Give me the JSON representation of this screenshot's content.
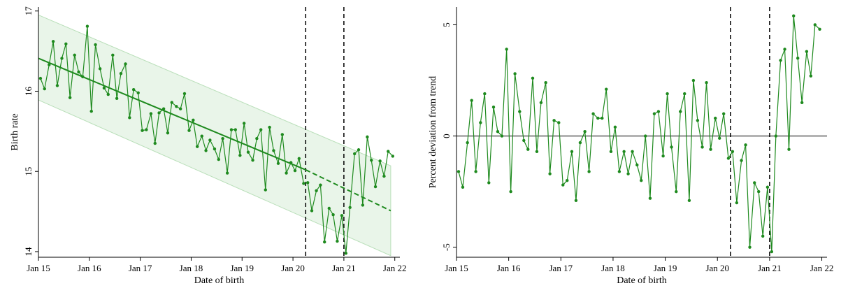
{
  "colors": {
    "series": "#1e8a1e",
    "band_fill": "#e9f5e9",
    "band_stroke": "#b9dfb9",
    "axis": "#000000",
    "event_line": "#000000"
  },
  "chart_data": [
    {
      "type": "line",
      "title": "",
      "xlabel": "Date of birth",
      "ylabel": "Birth rate",
      "xlim": [
        2015.0,
        2022.1
      ],
      "ylim": [
        13.93,
        17.05
      ],
      "x_ticks": [
        {
          "value": 2015,
          "label": "Jan 15"
        },
        {
          "value": 2016,
          "label": "Jan 16"
        },
        {
          "value": 2017,
          "label": "Jan 17"
        },
        {
          "value": 2018,
          "label": "Jan 18"
        },
        {
          "value": 2019,
          "label": "Jan 19"
        },
        {
          "value": 2020,
          "label": "Jan 20"
        },
        {
          "value": 2021,
          "label": "Jan 21"
        },
        {
          "value": 2022,
          "label": "Jan 22"
        }
      ],
      "y_ticks": [
        {
          "value": 14,
          "label": "14"
        },
        {
          "value": 15,
          "label": "15"
        },
        {
          "value": 16,
          "label": "16"
        },
        {
          "value": 17,
          "label": "17"
        }
      ],
      "grid": false,
      "legend": "none",
      "vertical_dashed_lines": [
        2020.25,
        2021.0
      ],
      "trend": {
        "solid": {
          "x": [
            2015.0,
            2020.25
          ],
          "y": [
            16.41,
            15.02
          ]
        },
        "dashed": {
          "x": [
            2020.25,
            2021.92
          ],
          "y": [
            15.02,
            14.51
          ]
        }
      },
      "band": {
        "x": [
          2015.0,
          2021.92
        ],
        "upper": [
          16.95,
          15.07
        ],
        "lower": [
          15.89,
          13.95
        ]
      },
      "series": [
        {
          "x": [
            2015.04,
            2015.12,
            2015.21,
            2015.29,
            2015.37,
            2015.46,
            2015.54,
            2015.62,
            2015.71,
            2015.79,
            2015.87,
            2015.96,
            2016.04,
            2016.12,
            2016.21,
            2016.29,
            2016.37,
            2016.46,
            2016.54,
            2016.62,
            2016.71,
            2016.79,
            2016.87,
            2016.96,
            2017.04,
            2017.12,
            2017.21,
            2017.29,
            2017.37,
            2017.46,
            2017.54,
            2017.62,
            2017.71,
            2017.79,
            2017.87,
            2017.96,
            2018.04,
            2018.12,
            2018.21,
            2018.29,
            2018.37,
            2018.46,
            2018.54,
            2018.62,
            2018.71,
            2018.79,
            2018.87,
            2018.96,
            2019.04,
            2019.12,
            2019.21,
            2019.29,
            2019.37,
            2019.46,
            2019.54,
            2019.62,
            2019.71,
            2019.79,
            2019.87,
            2019.96,
            2020.04,
            2020.12,
            2020.21,
            2020.29,
            2020.37,
            2020.46,
            2020.54,
            2020.62,
            2020.71,
            2020.79,
            2020.87,
            2020.96,
            2021.04,
            2021.12,
            2021.21,
            2021.29,
            2021.37,
            2021.46,
            2021.54,
            2021.62,
            2021.71,
            2021.79,
            2021.87,
            2021.96
          ],
          "values": [
            16.16,
            16.03,
            16.33,
            16.62,
            16.07,
            16.41,
            16.59,
            15.92,
            16.45,
            16.24,
            16.18,
            16.81,
            15.75,
            16.58,
            16.28,
            16.04,
            15.96,
            16.45,
            15.91,
            16.22,
            16.34,
            15.67,
            16.02,
            15.98,
            15.51,
            15.52,
            15.72,
            15.35,
            15.73,
            15.78,
            15.48,
            15.86,
            15.81,
            15.78,
            15.97,
            15.51,
            15.64,
            15.31,
            15.44,
            15.26,
            15.39,
            15.28,
            15.15,
            15.41,
            14.98,
            15.52,
            15.52,
            15.2,
            15.6,
            15.24,
            15.14,
            15.41,
            15.52,
            14.77,
            15.55,
            15.26,
            15.1,
            15.46,
            14.98,
            15.11,
            15.01,
            15.16,
            14.85,
            14.86,
            14.51,
            14.76,
            14.83,
            14.12,
            14.54,
            14.46,
            14.13,
            14.45,
            13.98,
            14.55,
            15.22,
            15.27,
            14.58,
            15.43,
            15.14,
            14.81,
            15.13,
            14.94,
            15.25,
            15.19
          ]
        }
      ]
    },
    {
      "type": "line",
      "title": "",
      "xlabel": "Date of birth",
      "ylabel": "Percent deviation from trend",
      "xlim": [
        2015.0,
        2022.1
      ],
      "ylim": [
        -5.45,
        5.8
      ],
      "x_ticks": [
        {
          "value": 2015,
          "label": "Jan 15"
        },
        {
          "value": 2016,
          "label": "Jan 16"
        },
        {
          "value": 2017,
          "label": "Jan 17"
        },
        {
          "value": 2018,
          "label": "Jan 18"
        },
        {
          "value": 2019,
          "label": "Jan 19"
        },
        {
          "value": 2020,
          "label": "Jan 20"
        },
        {
          "value": 2021,
          "label": "Jan 21"
        },
        {
          "value": 2022,
          "label": "Jan 22"
        }
      ],
      "y_ticks": [
        {
          "value": -5,
          "label": "-5"
        },
        {
          "value": 0,
          "label": "0"
        },
        {
          "value": 5,
          "label": "5"
        }
      ],
      "grid": false,
      "legend": "none",
      "zero_line": true,
      "vertical_dashed_lines": [
        2020.25,
        2021.0
      ],
      "series": [
        {
          "x": [
            2015.04,
            2015.12,
            2015.21,
            2015.29,
            2015.37,
            2015.46,
            2015.54,
            2015.62,
            2015.71,
            2015.79,
            2015.87,
            2015.96,
            2016.04,
            2016.12,
            2016.21,
            2016.29,
            2016.37,
            2016.46,
            2016.54,
            2016.62,
            2016.71,
            2016.79,
            2016.87,
            2016.96,
            2017.04,
            2017.12,
            2017.21,
            2017.29,
            2017.37,
            2017.46,
            2017.54,
            2017.62,
            2017.71,
            2017.79,
            2017.87,
            2017.96,
            2018.04,
            2018.12,
            2018.21,
            2018.29,
            2018.37,
            2018.46,
            2018.54,
            2018.62,
            2018.71,
            2018.79,
            2018.87,
            2018.96,
            2019.04,
            2019.12,
            2019.21,
            2019.29,
            2019.37,
            2019.46,
            2019.54,
            2019.62,
            2019.71,
            2019.79,
            2019.87,
            2019.96,
            2020.04,
            2020.12,
            2020.21,
            2020.29,
            2020.37,
            2020.46,
            2020.54,
            2020.62,
            2020.71,
            2020.79,
            2020.87,
            2020.96,
            2021.04,
            2021.12,
            2021.21,
            2021.29,
            2021.37,
            2021.46,
            2021.54,
            2021.62,
            2021.71,
            2021.79,
            2021.87,
            2021.96
          ],
          "values": [
            -1.6,
            -2.3,
            -0.3,
            1.6,
            -1.6,
            0.6,
            1.9,
            -2.1,
            1.3,
            0.2,
            0.0,
            3.9,
            -2.5,
            2.8,
            1.1,
            -0.2,
            -0.6,
            2.6,
            -0.7,
            1.5,
            2.4,
            -1.7,
            0.7,
            0.6,
            -2.2,
            -2.0,
            -0.7,
            -2.9,
            -0.3,
            0.2,
            -1.6,
            1.0,
            0.8,
            0.8,
            2.1,
            -0.7,
            0.4,
            -1.6,
            -0.7,
            -1.7,
            -0.7,
            -1.3,
            -2.0,
            0.0,
            -2.8,
            1.0,
            1.1,
            -0.9,
            1.9,
            -0.5,
            -2.5,
            1.1,
            1.9,
            -2.9,
            2.5,
            0.7,
            -0.5,
            2.4,
            -0.6,
            0.8,
            -0.1,
            1.0,
            -1.0,
            -0.7,
            -3.0,
            -1.1,
            -0.4,
            -5.0,
            -2.1,
            -2.5,
            -4.5,
            -2.3,
            -5.2,
            0.0,
            3.4,
            3.9,
            -0.6,
            5.4,
            3.5,
            1.5,
            3.8,
            2.7,
            5.0,
            4.8
          ]
        }
      ]
    }
  ]
}
